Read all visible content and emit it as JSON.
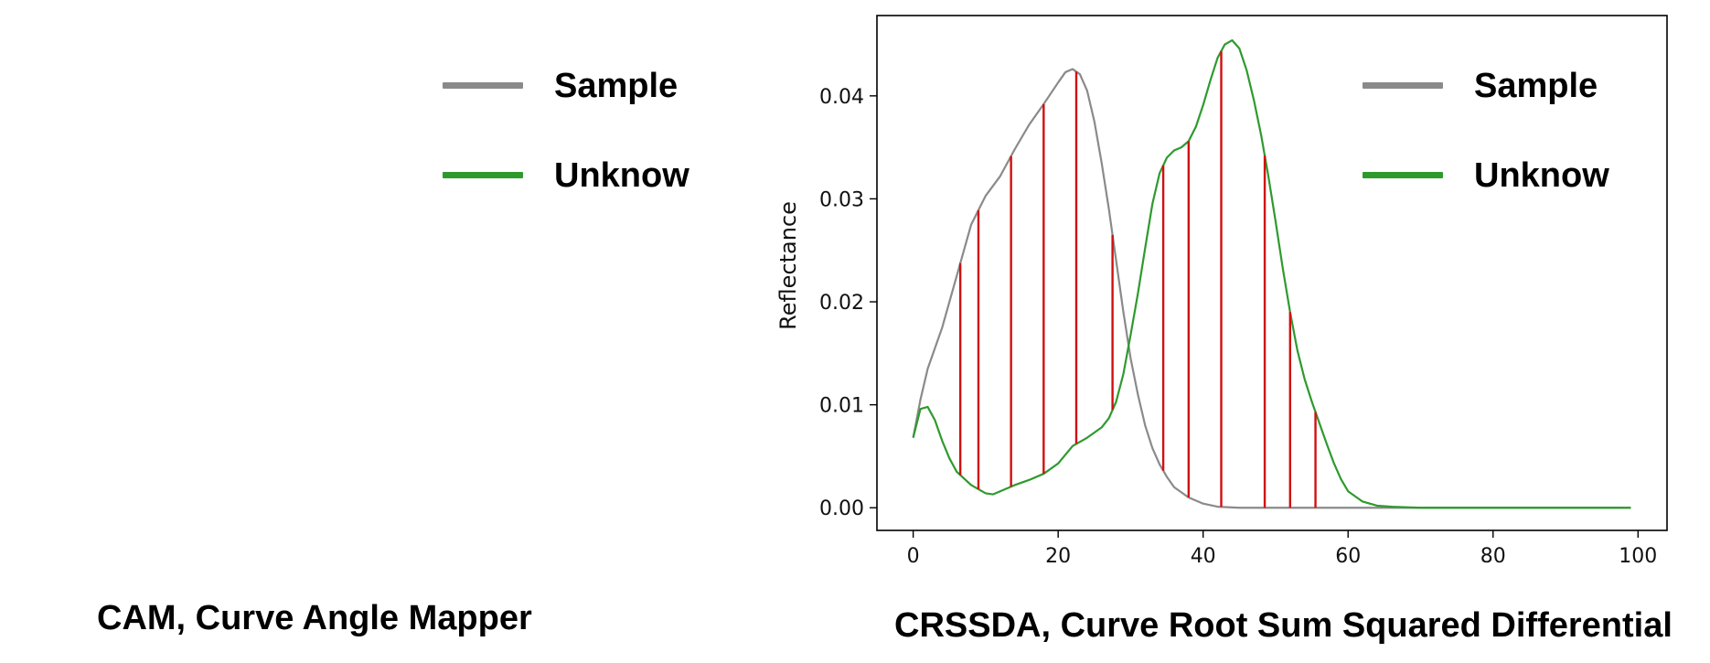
{
  "left_panel": {
    "legend": [
      {
        "label": "Sample",
        "color": "#8a8a8a"
      },
      {
        "label": "Unknow",
        "color": "#2e9a2e"
      }
    ],
    "caption": "CAM,  Curve Angle Mapper"
  },
  "right_panel": {
    "caption": "CRSSDA, Curve Root Sum Squared Differential",
    "legend": [
      {
        "label": "Sample",
        "color": "#8a8a8a"
      },
      {
        "label": "Unknow",
        "color": "#2e9a2e"
      }
    ]
  },
  "chart_data": {
    "type": "line",
    "title": "",
    "xlabel": "",
    "ylabel": "Reflectance",
    "xlim": [
      -5,
      104
    ],
    "ylim": [
      -0.0022,
      0.0478
    ],
    "x_ticks": [
      0,
      20,
      40,
      60,
      80,
      100
    ],
    "x_tick_labels": [
      "0",
      "20",
      "40",
      "60",
      "80",
      "100"
    ],
    "y_ticks": [
      0.0,
      0.01,
      0.02,
      0.03,
      0.04
    ],
    "y_tick_labels": [
      "0.00",
      "0.01",
      "0.02",
      "0.03",
      "0.04"
    ],
    "grid": false,
    "legend_position": "top-right",
    "series": [
      {
        "name": "Sample",
        "color": "#8a8a8a",
        "x": [
          0,
          1,
          2,
          4,
          6,
          8,
          10,
          12,
          14,
          16,
          18,
          20,
          21,
          22,
          23,
          24,
          25,
          26,
          27,
          28,
          29,
          30,
          31,
          32,
          33,
          34,
          35,
          36,
          38,
          40,
          42,
          45,
          50,
          60,
          70,
          80,
          90,
          99
        ],
        "values": [
          0.0068,
          0.0105,
          0.0135,
          0.0175,
          0.0225,
          0.0275,
          0.0303,
          0.0322,
          0.0348,
          0.0372,
          0.0392,
          0.0413,
          0.0423,
          0.0426,
          0.0421,
          0.0405,
          0.0375,
          0.0335,
          0.029,
          0.024,
          0.019,
          0.0145,
          0.011,
          0.008,
          0.0058,
          0.0042,
          0.003,
          0.002,
          0.001,
          0.0004,
          0.0001,
          0.0,
          0.0,
          0.0,
          0.0,
          0.0,
          0.0,
          0.0
        ]
      },
      {
        "name": "Unknow",
        "color": "#2e9a2e",
        "x": [
          0,
          1,
          2,
          3,
          4,
          5,
          6,
          8,
          10,
          11,
          12,
          14,
          16,
          18,
          20,
          22,
          24,
          26,
          27,
          28,
          29,
          30,
          31,
          32,
          33,
          34,
          35,
          36,
          37,
          38,
          39,
          40,
          41,
          42,
          43,
          44,
          45,
          46,
          47,
          48,
          49,
          50,
          51,
          52,
          53,
          54,
          55,
          56,
          57,
          58,
          59,
          60,
          62,
          64,
          66,
          70,
          80,
          90,
          99
        ],
        "values": [
          0.0068,
          0.0096,
          0.0098,
          0.0085,
          0.0065,
          0.0048,
          0.0035,
          0.0022,
          0.0014,
          0.0013,
          0.0016,
          0.0022,
          0.0027,
          0.0033,
          0.0043,
          0.006,
          0.0068,
          0.0078,
          0.0087,
          0.0103,
          0.013,
          0.0168,
          0.0208,
          0.0252,
          0.0295,
          0.0325,
          0.034,
          0.0347,
          0.035,
          0.0356,
          0.037,
          0.0391,
          0.0415,
          0.0437,
          0.045,
          0.0454,
          0.0446,
          0.0425,
          0.0396,
          0.0362,
          0.0322,
          0.0278,
          0.0232,
          0.019,
          0.0153,
          0.0125,
          0.0103,
          0.0083,
          0.0063,
          0.0044,
          0.0028,
          0.0016,
          0.0006,
          0.0002,
          0.0001,
          0.0,
          0.0,
          0.0,
          0.0
        ]
      }
    ],
    "difference_lines": {
      "color": "#d01010",
      "x": [
        6.5,
        9,
        13.5,
        18,
        22.5,
        27.5,
        34.5,
        38,
        42.5,
        48.5,
        52,
        55.5
      ]
    }
  }
}
